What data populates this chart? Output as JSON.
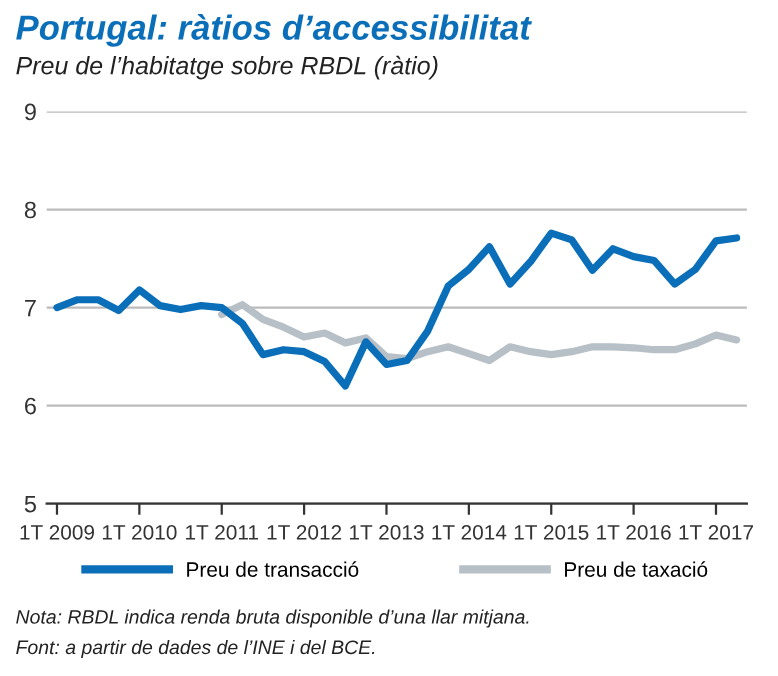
{
  "chart_data": {
    "type": "line",
    "title": "Portugal: ràtios d’accessibilitat",
    "subtitle": "Preu de l’habitatge sobre RBDL (ràtio)",
    "categories": [
      "1T 2009",
      null,
      null,
      null,
      "1T 2010",
      null,
      null,
      null,
      "1T 2011",
      null,
      null,
      null,
      "1T 2012",
      null,
      null,
      null,
      "1T 2013",
      null,
      null,
      null,
      "1T 2014",
      null,
      null,
      null,
      "1T 2015",
      null,
      null,
      null,
      "1T 2016",
      null,
      null,
      null,
      "1T 2017",
      null
    ],
    "series": [
      {
        "name": "Preu de transacció",
        "color": "#0a6fb8",
        "values": [
          7.0,
          7.08,
          7.08,
          6.97,
          7.18,
          7.02,
          6.98,
          7.02,
          7.0,
          6.84,
          6.52,
          6.57,
          6.55,
          6.45,
          6.2,
          6.65,
          6.42,
          6.46,
          6.76,
          7.22,
          7.39,
          7.62,
          7.24,
          7.47,
          7.76,
          7.69,
          7.38,
          7.6,
          7.52,
          7.48,
          7.24,
          7.39,
          7.68,
          7.71
        ]
      },
      {
        "name": "Preu de taxació",
        "color": "#b7c0c6",
        "values": [
          null,
          null,
          null,
          null,
          null,
          null,
          null,
          null,
          6.93,
          7.03,
          6.88,
          6.8,
          6.7,
          6.74,
          6.64,
          6.69,
          6.5,
          6.48,
          6.55,
          6.6,
          6.53,
          6.46,
          6.6,
          6.55,
          6.52,
          6.55,
          6.6,
          6.6,
          6.59,
          6.57,
          6.57,
          6.63,
          6.72,
          6.67
        ]
      }
    ],
    "ylim": [
      5,
      9
    ],
    "yticks": [
      5,
      6,
      7,
      8,
      9
    ],
    "grid": "y",
    "legend": "bottom",
    "marker": "none",
    "line_style": "solid",
    "annotations": [
      "Nota: RBDL indica renda bruta disponible d’una llar mitjana.",
      "Font: a partir de dades de l’INE i del BCE."
    ]
  }
}
